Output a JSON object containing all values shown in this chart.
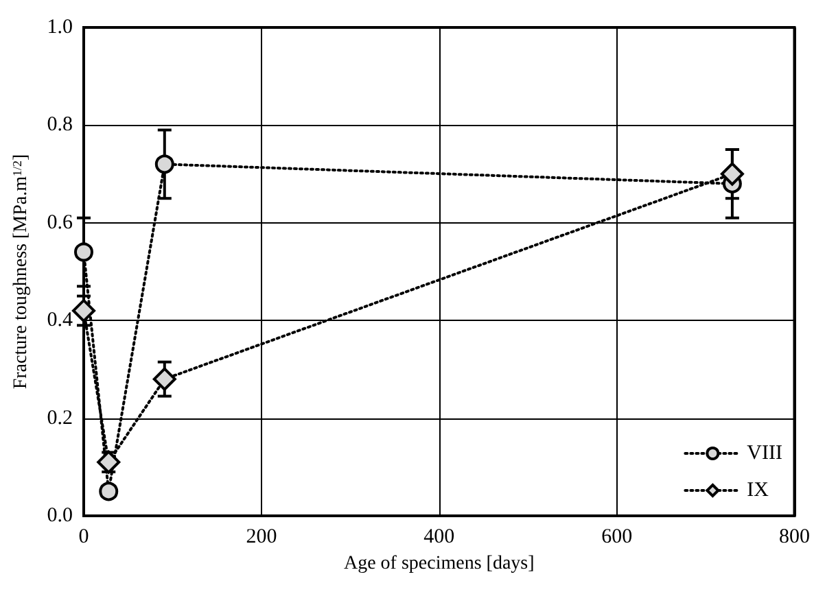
{
  "chart_data": {
    "type": "line",
    "xlabel": "Age of specimens [days]",
    "ylabel": "Fracture toughness [MPa.m$^{1/2}$]",
    "x": [
      0,
      28,
      91,
      730
    ],
    "series": [
      {
        "name": "VIII",
        "color": "#000000",
        "marker": "circle",
        "values": [
          0.54,
          0.05,
          0.72,
          0.68
        ],
        "errors": [
          0.07,
          null,
          0.07,
          0.07
        ]
      },
      {
        "name": "IX",
        "color": "#000000",
        "marker": "diamond",
        "values": [
          0.42,
          0.11,
          0.28,
          0.7
        ],
        "errors": [
          0.03,
          0.02,
          0.035,
          0.05
        ]
      }
    ],
    "xlim": [
      0,
      800
    ],
    "xticks": [
      0,
      200,
      400,
      600,
      800
    ],
    "ylim": [
      0,
      1
    ],
    "yticks": [
      {
        "value": 0,
        "label": "0.0"
      },
      {
        "value": 0.2,
        "label": "0.2"
      },
      {
        "value": 0.4,
        "label": "0.4"
      },
      {
        "value": 0.6,
        "label": "0.6"
      },
      {
        "value": 0.8,
        "label": "0.8"
      },
      {
        "value": 1,
        "label": "1.0"
      }
    ],
    "grid": true,
    "legend": "bottom right",
    "line_style": "dotted"
  }
}
